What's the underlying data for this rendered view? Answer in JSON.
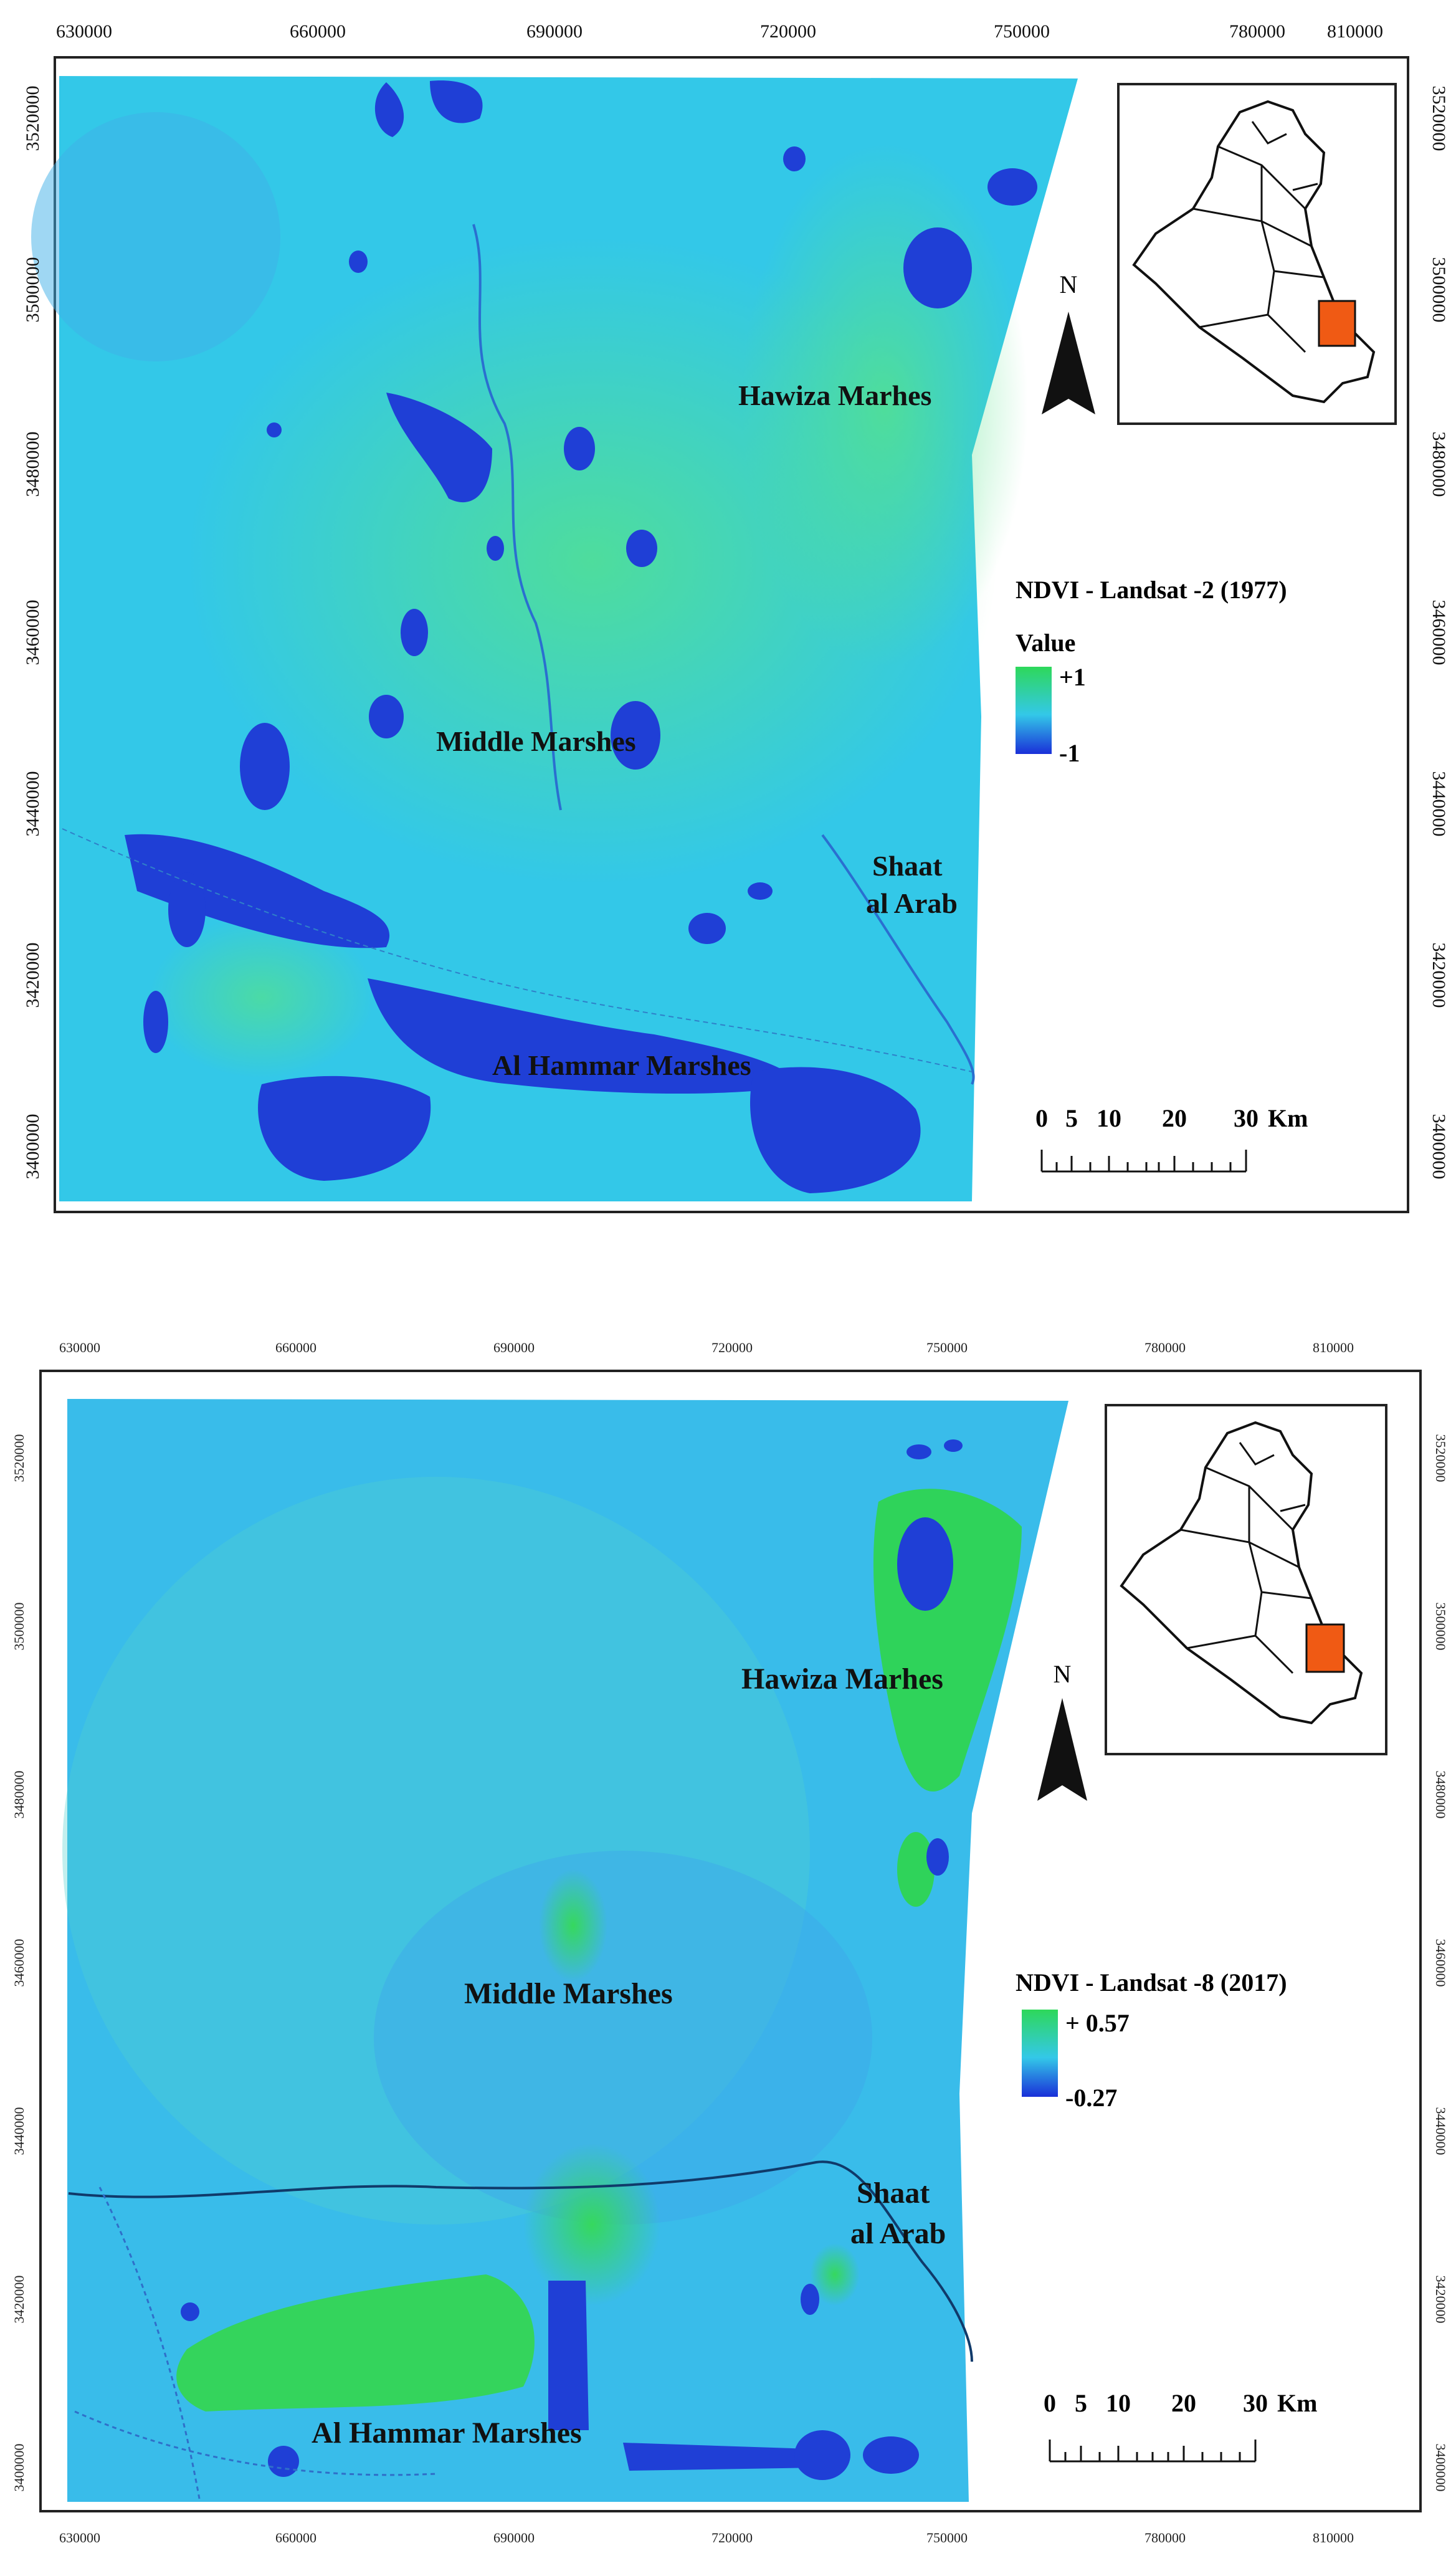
{
  "map1": {
    "x_ticks": [
      "630000",
      "660000",
      "690000",
      "720000",
      "750000",
      "780000",
      "810000"
    ],
    "y_ticks": [
      "3520000",
      "3500000",
      "3480000",
      "3460000",
      "3440000",
      "3420000",
      "3400000"
    ],
    "labels": {
      "hawiza": "Hawiza Marhes",
      "middle": "Middle Marshes",
      "shaat1": "Shaat",
      "shaat2": "al Arab",
      "hammar": "Al Hammar Marshes"
    },
    "legend": {
      "title": "NDVI - Landsat -2 (1977)",
      "subtitle": "Value",
      "max": "+1",
      "min": "-1"
    },
    "north": "N",
    "scale": {
      "ticks": [
        "0",
        "5",
        "10",
        "20",
        "30"
      ],
      "unit": "Km"
    }
  },
  "map2": {
    "x_ticks": [
      "630000",
      "660000",
      "690000",
      "720000",
      "750000",
      "780000",
      "810000"
    ],
    "y_ticks": [
      "3520000",
      "3500000",
      "3480000",
      "3460000",
      "3440000",
      "3420000",
      "3400000"
    ],
    "labels": {
      "hawiza": "Hawiza Marhes",
      "middle": "Middle Marshes",
      "shaat1": "Shaat",
      "shaat2": "al Arab",
      "hammar": "Al Hammar Marshes"
    },
    "legend": {
      "title": "NDVI - Landsat -8 (2017)",
      "max": "+ 0.57",
      "min": "-0.27"
    },
    "north": "N",
    "scale": {
      "ticks": [
        "0",
        "5",
        "10",
        "20",
        "30"
      ],
      "unit": "Km"
    }
  },
  "colors": {
    "water": "#1f3fd6",
    "vegetation": "#3ed86a",
    "base": "#33c8e8",
    "highlight": "#f05a14"
  }
}
